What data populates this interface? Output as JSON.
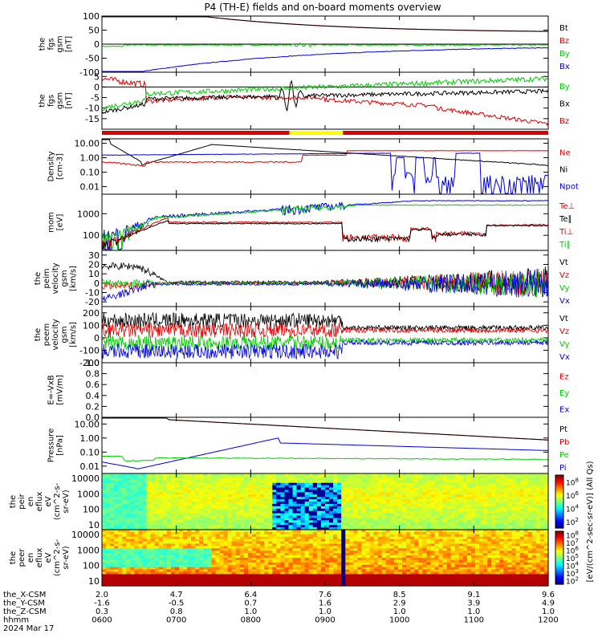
{
  "title": "P4 (TH-E) fields and on-board moments overview",
  "colors": {
    "black": "#000000",
    "red": "#dd0000",
    "green": "#00cc00",
    "blue": "#0000dd",
    "yellow": "#ffff00"
  },
  "footer": {
    "rows": [
      {
        "label": "the_X-CSM",
        "values": [
          "2.0",
          "4.7",
          "6.4",
          "7.6",
          "8.5",
          "9.1",
          "9.6"
        ]
      },
      {
        "label": "the_Y-CSM",
        "values": [
          "-1.6",
          "-0.5",
          "0.7",
          "1.6",
          "2.9",
          "3.9",
          "4.9"
        ]
      },
      {
        "label": "the_Z-CSM",
        "values": [
          "0.3",
          "0.8",
          "1.0",
          "1.0",
          "1.0",
          "1.0",
          "1.0"
        ]
      },
      {
        "label": "hhmm",
        "values": [
          "0600",
          "0700",
          "0800",
          "0900",
          "1000",
          "1100",
          "1200"
        ]
      }
    ],
    "date": "2024 Mar 17"
  },
  "colorbar": {
    "label": "[eV/(cm^2-sec-sr-eV)] (All Qs)",
    "top_ticks": [
      "10^8",
      "10^6",
      "10^4",
      "10^2"
    ],
    "bottom_ticks": [
      "10^8",
      "10^7",
      "10^6",
      "10^5",
      "10^4",
      "10^3",
      "10^2"
    ]
  },
  "chart_data": [
    {
      "type": "line",
      "ylabel_lines": [
        "the",
        "fgs",
        "gsm",
        "[nT]"
      ],
      "ylim": [
        -100,
        100
      ],
      "yticks": [
        "100",
        "50",
        "0",
        "-50",
        "-100"
      ],
      "legend": [
        {
          "name": "Bt",
          "color": "black"
        },
        {
          "name": "Bz",
          "color": "red"
        },
        {
          "name": "By",
          "color": "green"
        },
        {
          "name": "Bx",
          "color": "blue"
        }
      ]
    },
    {
      "type": "line",
      "ylabel_lines": [
        "the",
        "fgs",
        "gsm",
        "[nT]"
      ],
      "ylim": [
        -20,
        7
      ],
      "yticks": [
        "5",
        "0",
        "-5",
        "-10",
        "-15"
      ],
      "legend": [
        {
          "name": "By",
          "color": "green"
        },
        {
          "name": "Bx",
          "color": "black"
        },
        {
          "name": "Bz",
          "color": "red"
        }
      ]
    },
    {
      "type": "line",
      "ylabel_lines": [
        "Density",
        "[cm-3]"
      ],
      "ylim": [
        0.003,
        20
      ],
      "log": true,
      "yticks": [
        "10.00",
        "1.00",
        "0.10",
        "0.01"
      ],
      "legend": [
        {
          "name": "Ne",
          "color": "red"
        },
        {
          "name": "Ni",
          "color": "black"
        },
        {
          "name": "Npot",
          "color": "blue"
        }
      ]
    },
    {
      "type": "line",
      "ylabel_lines": [
        "mom",
        "[eV]"
      ],
      "ylim": [
        20,
        8000
      ],
      "log": true,
      "yticks": [
        "1000",
        "100"
      ],
      "legend": [
        {
          "name": "Te⊥",
          "color": "red"
        },
        {
          "name": "Te∥",
          "color": "black"
        },
        {
          "name": "Ti⊥",
          "color": "red"
        },
        {
          "name": "Ti∥",
          "color": "green"
        }
      ]
    },
    {
      "type": "line",
      "ylabel_lines": [
        "the",
        "peim",
        "velocity",
        "gsm",
        "[km/s]"
      ],
      "ylim": [
        -25,
        35
      ],
      "yticks": [
        "30",
        "20",
        "10",
        "0",
        "-10",
        "-20"
      ],
      "legend": [
        {
          "name": "Vt",
          "color": "black"
        },
        {
          "name": "Vz",
          "color": "red"
        },
        {
          "name": "Vy",
          "color": "green"
        },
        {
          "name": "Vx",
          "color": "blue"
        }
      ]
    },
    {
      "type": "line",
      "ylabel_lines": [
        "the",
        "peem",
        "velocity",
        "gsm",
        "[km/s]"
      ],
      "ylim": [
        -200,
        250
      ],
      "yticks": [
        "200",
        "100",
        "0",
        "-100",
        "-200"
      ],
      "legend": [
        {
          "name": "Vt",
          "color": "black"
        },
        {
          "name": "Vz",
          "color": "red"
        },
        {
          "name": "Vy",
          "color": "green"
        },
        {
          "name": "Vx",
          "color": "blue"
        }
      ]
    },
    {
      "type": "line",
      "ylabel_lines": [
        "E=-VxB",
        "[mV/m]"
      ],
      "ylim": [
        0,
        1
      ],
      "yticks": [
        "1.0",
        "0.8",
        "0.6",
        "0.4",
        "0.2",
        "0.0"
      ],
      "legend": [
        {
          "name": "Ez",
          "color": "red"
        },
        {
          "name": "Ey",
          "color": "green"
        },
        {
          "name": "Ex",
          "color": "blue"
        }
      ]
    },
    {
      "type": "line",
      "ylabel_lines": [
        "Pressure",
        "[nPa]"
      ],
      "ylim": [
        0.003,
        30
      ],
      "log": true,
      "yticks": [
        "10.00",
        "1.00",
        "0.10",
        "0.01"
      ],
      "legend": [
        {
          "name": "Pt",
          "color": "black"
        },
        {
          "name": "Pb",
          "color": "red"
        },
        {
          "name": "Pe",
          "color": "green"
        },
        {
          "name": "Pi",
          "color": "blue"
        }
      ]
    },
    {
      "type": "heatmap",
      "ylabel_lines": [
        "the",
        "peir",
        "en",
        "eflux",
        "eV",
        "(cm^2-s-",
        "sr-eV)"
      ],
      "ylim": [
        5,
        20000
      ],
      "log": true,
      "yticks": [
        "10000",
        "1000",
        "100",
        "10"
      ]
    },
    {
      "type": "heatmap",
      "ylabel_lines": [
        "the",
        "peer",
        "en",
        "eflux",
        "eV",
        "(cm^2-s-",
        "sr-eV)"
      ],
      "ylim": [
        5,
        20000
      ],
      "log": true,
      "yticks": [
        "10000",
        "1000",
        "100",
        "10"
      ]
    }
  ]
}
